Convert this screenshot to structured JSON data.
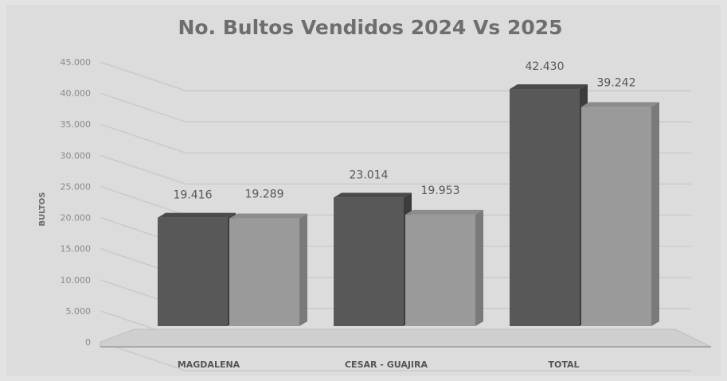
{
  "chart_data": {
    "type": "bar",
    "title": "No. Bultos Vendidos 2024 Vs 2025",
    "ylabel": "BULTOS",
    "xlabel": "",
    "categories": [
      "MAGDALENA",
      "CESAR - GUAJIRA",
      "TOTAL"
    ],
    "series": [
      {
        "values": [
          19416,
          23014,
          42430
        ],
        "value_labels": [
          "19.416",
          "23.014",
          "42.430"
        ],
        "color": "#585858"
      },
      {
        "values": [
          19289,
          19953,
          39242
        ],
        "value_labels": [
          "19.289",
          "19.953",
          "39.242"
        ],
        "color": "#9a9a9a"
      }
    ],
    "ylim": [
      0,
      45000
    ],
    "yticks": [
      0,
      5000,
      10000,
      15000,
      20000,
      25000,
      30000,
      35000,
      40000,
      45000
    ],
    "ytick_labels": [
      "0",
      "5.000",
      "10.000",
      "15.000",
      "20.000",
      "25.000",
      "30.000",
      "35.000",
      "40.000",
      "45.000"
    ],
    "grid": true,
    "legend": "none",
    "style": "3d-clustered-columns"
  }
}
